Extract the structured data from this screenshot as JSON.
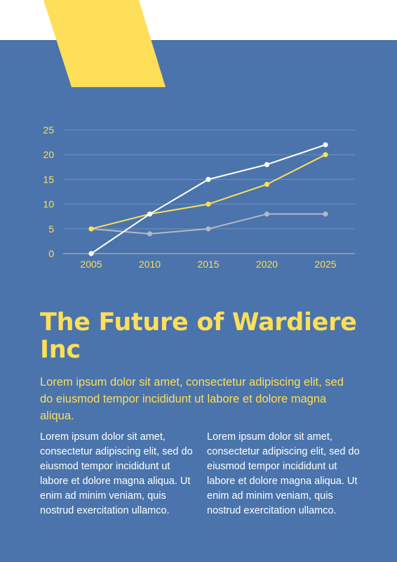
{
  "colors": {
    "background": "#4a74ab",
    "accent": "#ffde59",
    "top_band": "#ffffff",
    "series_white": "#ffffff",
    "series_yellow": "#ffde59",
    "series_gray": "#b4b8c8",
    "grid": "#6f91be"
  },
  "chart_data": {
    "type": "line",
    "x": [
      2005,
      2010,
      2015,
      2020,
      2025
    ],
    "ylim": [
      0,
      25
    ],
    "yticks": [
      0,
      5,
      10,
      15,
      20,
      25
    ],
    "grid": true,
    "series": [
      {
        "values": [
          0,
          8,
          15,
          18,
          22
        ],
        "color": "#ffffff"
      },
      {
        "values": [
          5,
          8,
          10,
          14,
          20
        ],
        "color": "#ffde59"
      },
      {
        "values": [
          5,
          4,
          5,
          8,
          8
        ],
        "color": "#b4b8c8"
      }
    ]
  },
  "content": {
    "title": "The Future of Wardiere Inc",
    "lead": "Lorem ipsum dolor sit amet, consectetur adipiscing elit, sed do eiusmod tempor incididunt ut labore et dolore magna aliqua.",
    "column_left": "Lorem ipsum dolor sit amet, consectetur adipiscing elit, sed do eiusmod tempor incididunt ut labore et dolore magna aliqua. Ut enim ad minim veniam, quis nostrud exercitation ullamco.",
    "column_right": "Lorem ipsum dolor sit amet, consectetur adipiscing elit, sed do eiusmod tempor incididunt ut labore et dolore magna aliqua. Ut enim ad minim veniam, quis nostrud exercitation ullamco."
  }
}
